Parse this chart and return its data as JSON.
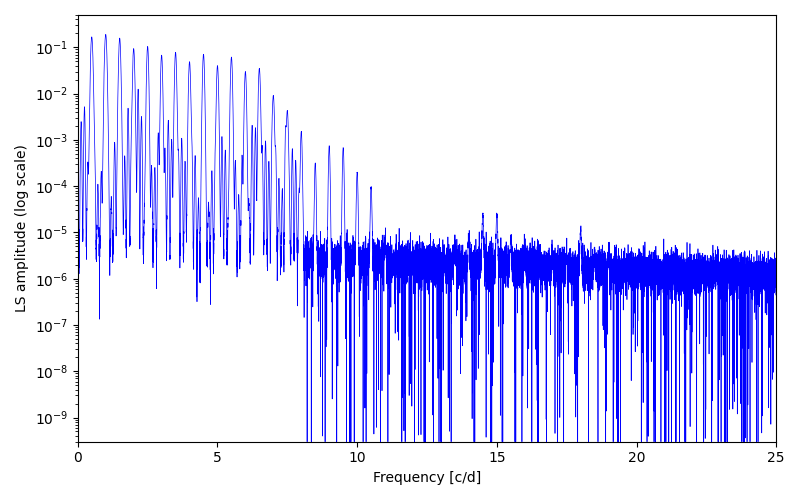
{
  "xlabel": "Frequency [c/d]",
  "ylabel": "LS amplitude (log scale)",
  "xlim": [
    0,
    25
  ],
  "ylim": [
    3e-10,
    0.5
  ],
  "line_color": "#0000FF",
  "linewidth": 0.5,
  "figsize": [
    8.0,
    5.0
  ],
  "dpi": 100,
  "seed": 7,
  "n_points": 15000,
  "freq_max": 25.0,
  "noise_floor_base": 4e-06,
  "noise_floor_scale": 0.5,
  "decay_rate": 0.05,
  "spike_down_prob": 0.04,
  "spike_down_scale": 6.0
}
